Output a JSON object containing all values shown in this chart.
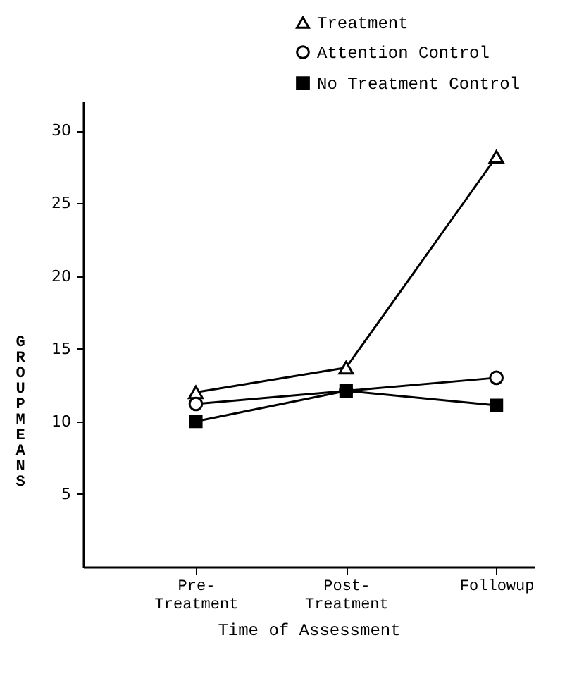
{
  "chart_data": {
    "type": "line",
    "xlabel": "Time of Assessment",
    "ylabel": "GROUP MEANS",
    "categories": [
      "Pre- Treatment",
      "Post- Treatment",
      "Followup"
    ],
    "series": [
      {
        "name": "Treatment",
        "color": "#000000",
        "marker": "triangle",
        "values": [
          12.0,
          13.7,
          28.2
        ]
      },
      {
        "name": "Attention Control",
        "color": "#000000",
        "marker": "circle",
        "values": [
          11.2,
          12.1,
          13.0
        ]
      },
      {
        "name": "No Treatment Control",
        "color": "#000000",
        "marker": "square",
        "values": [
          10.0,
          12.1,
          11.1
        ]
      }
    ],
    "ylim": [
      0,
      32
    ],
    "yticks": [
      5,
      10,
      15,
      20,
      25,
      30
    ],
    "grid": false,
    "legend": "top right",
    "line_style": "solid"
  }
}
